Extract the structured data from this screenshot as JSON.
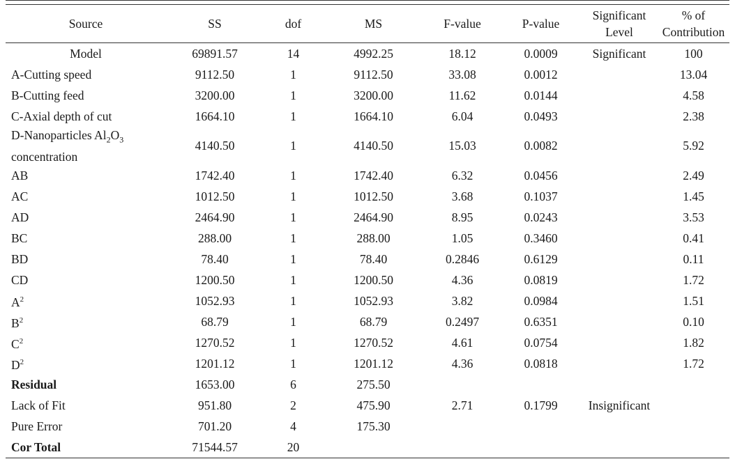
{
  "headers": {
    "source": "Source",
    "ss": "SS",
    "dof": "dof",
    "ms": "MS",
    "f_value": "F-value",
    "p_value": "P-value",
    "significant_level": "Significant Level",
    "contribution": "% of Contribution"
  },
  "rows": [
    {
      "source": "Model",
      "ss": "69891.57",
      "dof": "14",
      "ms": "4992.25",
      "f": "18.12",
      "p": "0.0009",
      "sig": "Significant",
      "contrib": "100"
    },
    {
      "source": "A-Cutting speed",
      "ss": "9112.50",
      "dof": "1",
      "ms": "9112.50",
      "f": "33.08",
      "p": "0.0012",
      "sig": "",
      "contrib": "13.04"
    },
    {
      "source": "B-Cutting feed",
      "ss": "3200.00",
      "dof": "1",
      "ms": "3200.00",
      "f": "11.62",
      "p": "0.0144",
      "sig": "",
      "contrib": "4.58"
    },
    {
      "source": "C-Axial depth of cut",
      "ss": "1664.10",
      "dof": "1",
      "ms": "1664.10",
      "f": "6.04",
      "p": "0.0493",
      "sig": "",
      "contrib": "2.38"
    },
    {
      "source_line1": "D-Nanoparticles Al",
      "source_sub1": "2",
      "source_mid": "O",
      "source_sub2": "3",
      "source_line2": "concentration",
      "ss": "4140.50",
      "dof": "1",
      "ms": "4140.50",
      "f": "15.03",
      "p": "0.0082",
      "sig": "",
      "contrib": "5.92"
    },
    {
      "source": "AB",
      "ss": "1742.40",
      "dof": "1",
      "ms": "1742.40",
      "f": "6.32",
      "p": "0.0456",
      "sig": "",
      "contrib": "2.49"
    },
    {
      "source": "AC",
      "ss": "1012.50",
      "dof": "1",
      "ms": "1012.50",
      "f": "3.68",
      "p": "0.1037",
      "sig": "",
      "contrib": "1.45"
    },
    {
      "source": "AD",
      "ss": "2464.90",
      "dof": "1",
      "ms": "2464.90",
      "f": "8.95",
      "p": "0.0243",
      "sig": "",
      "contrib": "3.53"
    },
    {
      "source": "BC",
      "ss": "288.00",
      "dof": "1",
      "ms": "288.00",
      "f": "1.05",
      "p": "0.3460",
      "sig": "",
      "contrib": "0.41"
    },
    {
      "source": "BD",
      "ss": "78.40",
      "dof": "1",
      "ms": "78.40",
      "f": "0.2846",
      "p": "0.6129",
      "sig": "",
      "contrib": "0.11"
    },
    {
      "source": "CD",
      "ss": "1200.50",
      "dof": "1",
      "ms": "1200.50",
      "f": "4.36",
      "p": "0.0819",
      "sig": "",
      "contrib": "1.72"
    },
    {
      "source_base": "A",
      "source_sup": "2",
      "ss": "1052.93",
      "dof": "1",
      "ms": "1052.93",
      "f": "3.82",
      "p": "0.0984",
      "sig": "",
      "contrib": "1.51"
    },
    {
      "source_base": "B",
      "source_sup": "2",
      "ss": "68.79",
      "dof": "1",
      "ms": "68.79",
      "f": "0.2497",
      "p": "0.6351",
      "sig": "",
      "contrib": "0.10"
    },
    {
      "source_base": "C",
      "source_sup": "2",
      "ss": "1270.52",
      "dof": "1",
      "ms": "1270.52",
      "f": "4.61",
      "p": "0.0754",
      "sig": "",
      "contrib": "1.82"
    },
    {
      "source_base": "D",
      "source_sup": "2",
      "ss": "1201.12",
      "dof": "1",
      "ms": "1201.12",
      "f": "4.36",
      "p": "0.0818",
      "sig": "",
      "contrib": "1.72"
    },
    {
      "source": "Residual",
      "ss": "1653.00",
      "dof": "6",
      "ms": "275.50",
      "f": "",
      "p": "",
      "sig": "",
      "contrib": ""
    },
    {
      "source": "Lack of Fit",
      "ss": "951.80",
      "dof": "2",
      "ms": "475.90",
      "f": "2.71",
      "p": "0.1799",
      "sig": "Insignificant",
      "contrib": ""
    },
    {
      "source": "Pure Error",
      "ss": "701.20",
      "dof": "4",
      "ms": "175.30",
      "f": "",
      "p": "",
      "sig": "",
      "contrib": ""
    },
    {
      "source": "Cor Total",
      "ss": "71544.57",
      "dof": "20",
      "ms": "",
      "f": "",
      "p": "",
      "sig": "",
      "contrib": ""
    }
  ]
}
